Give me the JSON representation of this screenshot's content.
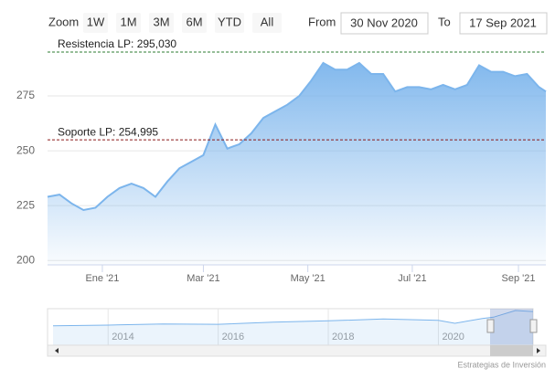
{
  "chart_data": {
    "type": "area",
    "range_selector": {
      "zoom_label": "Zoom",
      "buttons": [
        "1W",
        "1M",
        "3M",
        "6M",
        "YTD",
        "All"
      ],
      "from_label": "From",
      "from": "30 Nov 2020",
      "to_label": "To",
      "to": "17 Sep 2021"
    },
    "x": [
      "2020-11-30",
      "2020-12-07",
      "2020-12-14",
      "2020-12-21",
      "2020-12-28",
      "2021-01-04",
      "2021-01-11",
      "2021-01-18",
      "2021-01-25",
      "2021-02-01",
      "2021-02-08",
      "2021-02-15",
      "2021-02-22",
      "2021-03-01",
      "2021-03-08",
      "2021-03-15",
      "2021-03-22",
      "2021-03-29",
      "2021-04-05",
      "2021-04-12",
      "2021-04-19",
      "2021-04-26",
      "2021-05-03",
      "2021-05-10",
      "2021-05-17",
      "2021-05-24",
      "2021-05-31",
      "2021-06-07",
      "2021-06-14",
      "2021-06-21",
      "2021-06-28",
      "2021-07-05",
      "2021-07-12",
      "2021-07-19",
      "2021-07-26",
      "2021-08-02",
      "2021-08-09",
      "2021-08-16",
      "2021-08-23",
      "2021-08-30",
      "2021-09-06",
      "2021-09-13",
      "2021-09-17"
    ],
    "values": [
      229,
      230,
      226,
      223,
      224,
      229,
      233,
      235,
      233,
      229,
      236,
      242,
      245,
      248,
      262,
      251,
      253,
      258,
      265,
      268,
      271,
      275,
      282,
      290,
      287,
      287,
      290,
      285,
      285,
      277,
      279,
      279,
      278,
      280,
      278,
      280,
      289,
      286,
      286,
      284,
      285,
      279,
      277
    ],
    "color": "#7cb5ec",
    "xlim": [
      "2020-11-30",
      "2021-09-17"
    ],
    "xticks": [
      {
        "value": "2021-01-01",
        "label": "Ene '21"
      },
      {
        "value": "2021-03-01",
        "label": "Mar '21"
      },
      {
        "value": "2021-05-01",
        "label": "May '21"
      },
      {
        "value": "2021-07-01",
        "label": "Jul '21"
      },
      {
        "value": "2021-09-01",
        "label": "Sep '21"
      }
    ],
    "ylim": [
      198,
      300
    ],
    "yticks": [
      200,
      225,
      250,
      275
    ],
    "grid": true,
    "plot_lines": [
      {
        "value": 295.03,
        "label": "Resistencia LP: 295,030",
        "color": "#2e7d32"
      },
      {
        "value": 254.995,
        "label": "Soporte LP: 254,995",
        "color": "#8b1a1a"
      }
    ],
    "navigator": {
      "x": [
        2013.0,
        2014.0,
        2015.0,
        2016.0,
        2017.0,
        2018.0,
        2019.0,
        2020.0,
        2020.3,
        2020.8,
        2021.0,
        2021.4,
        2021.72
      ],
      "values": [
        160,
        165,
        175,
        172,
        190,
        200,
        215,
        205,
        180,
        220,
        230,
        285,
        277
      ],
      "xlim": [
        2012.9,
        2021.72
      ],
      "ylim": [
        0,
        300
      ],
      "xticks": [
        2014,
        2016,
        2018,
        2020
      ]
    },
    "credits": "Estrategias de Inversión"
  }
}
